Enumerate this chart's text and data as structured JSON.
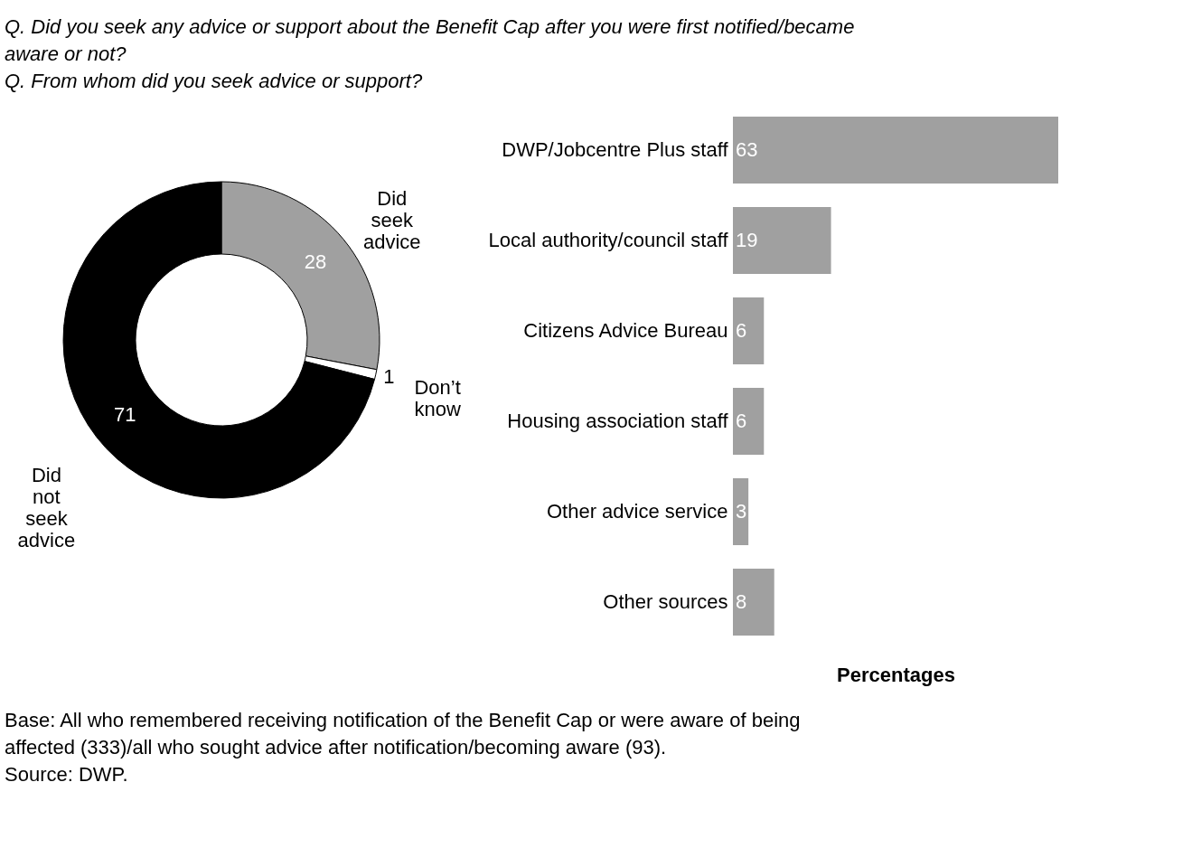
{
  "chart_data": [
    {
      "type": "donut",
      "title": "Q.   Did you seek any advice or support about the Benefit Cap after you were first notified/became aware or not?",
      "subtitle": "Q.   From whom did you seek advice or support?",
      "categories": [
        "Did seek advice",
        "Don’t know",
        "Did not seek advice"
      ],
      "values": [
        28,
        1,
        71
      ],
      "colors": [
        "#a0a0a0",
        "#ffffff",
        "#000000"
      ],
      "data_labels": true,
      "legend": false
    },
    {
      "type": "bar",
      "orientation": "horizontal",
      "categories": [
        "DWP/Jobcentre Plus staff",
        "Local authority/council staff",
        "Citizens Advice Bureau",
        "Housing association staff",
        "Other advice service",
        "Other sources"
      ],
      "values": [
        63,
        19,
        6,
        6,
        3,
        8
      ],
      "color": "#a0a0a0",
      "data_labels": true,
      "xlabel": "Percentages",
      "annotations": [
        "Base: All who remembered receiving notification of the Benefit Cap or were aware of being affected (333)/all who sought advice after notification/becoming aware (93).",
        "Source: DWP."
      ]
    }
  ]
}
